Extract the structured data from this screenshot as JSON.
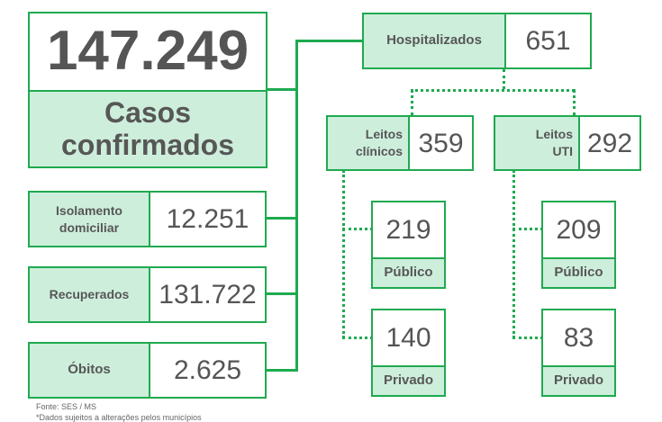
{
  "confirmed": {
    "value": "147.249",
    "label_line1": "Casos",
    "label_line2": "confirmados"
  },
  "isolation": {
    "label_line1": "Isolamento",
    "label_line2": "domiciliar",
    "value": "12.251"
  },
  "recovered": {
    "label": "Recuperados",
    "value": "131.722"
  },
  "deaths": {
    "label": "Óbitos",
    "value": "2.625"
  },
  "hospitalized": {
    "label": "Hospitalizados",
    "value": "651"
  },
  "clinical_beds": {
    "label_line1": "Leitos",
    "label_line2": "clínicos",
    "value": "359",
    "public": {
      "value": "219",
      "label": "Público"
    },
    "private": {
      "value": "140",
      "label": "Privado"
    }
  },
  "icu_beds": {
    "label_line1": "Leitos",
    "label_line2": "UTI",
    "value": "292",
    "public": {
      "value": "209",
      "label": "Público"
    },
    "private": {
      "value": "83",
      "label": "Privado"
    }
  },
  "footer": {
    "source": "Fonte: SES / MS",
    "note": "*Dados sujeitos a alterações pelos municípios"
  },
  "colors": {
    "accent": "#1faa50",
    "label_fill": "#cdeedb",
    "text": "#555555"
  }
}
